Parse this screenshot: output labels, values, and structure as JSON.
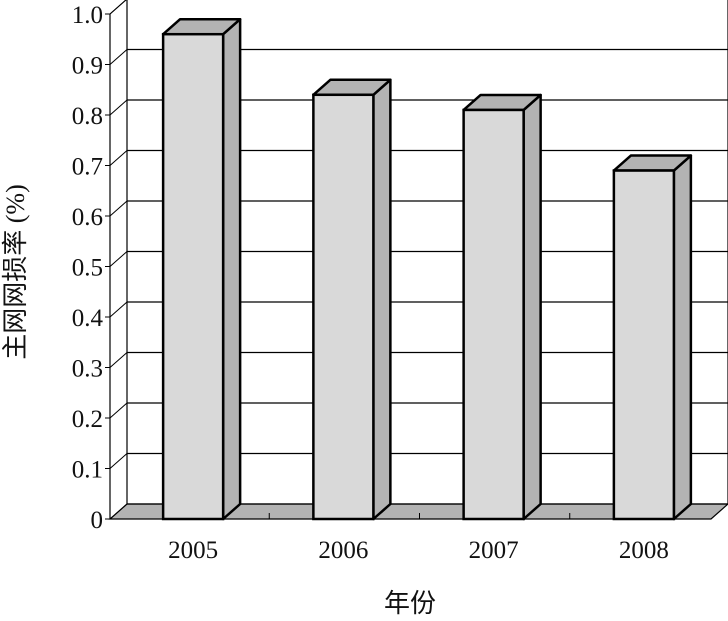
{
  "chart_data": {
    "type": "bar",
    "style": "3d",
    "title": "",
    "xlabel": "年份",
    "ylabel": "主网网损率 (%)",
    "categories": [
      "2005",
      "2006",
      "2007",
      "2008"
    ],
    "values": [
      0.96,
      0.84,
      0.81,
      0.69
    ],
    "ylim": [
      0,
      1.0
    ],
    "yticks": [
      "0",
      "0.1",
      "0.2",
      "0.3",
      "0.4",
      "0.5",
      "0.6",
      "0.7",
      "0.8",
      "0.9",
      "1.0"
    ],
    "grid": true,
    "legend": "none",
    "colors": {
      "front": "#d9d9d9",
      "side": "#b3b3b3",
      "floor": "#b3b3b3",
      "line": "#000000"
    }
  }
}
